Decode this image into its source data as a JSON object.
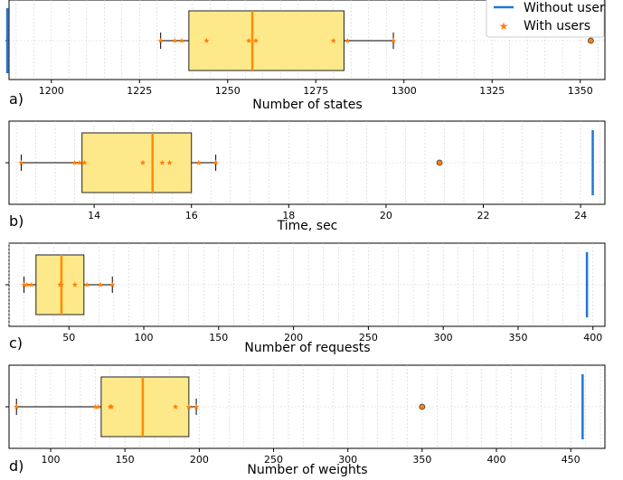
{
  "colors": {
    "baseline": "#1f77d4",
    "box_fill": "#fde98a",
    "box_edge": "#222222",
    "median": "#ff8c00",
    "points": "#ff7f0e",
    "grid": "#d0d0d0"
  },
  "legend": {
    "placement": "top-right",
    "without_user": "Without user",
    "with_users": "With users"
  },
  "chart_data": [
    {
      "type": "box",
      "panel_label": "a)",
      "xlabel": "Number of states",
      "xlim": [
        1188,
        1357
      ],
      "ticks": [
        1200,
        1225,
        1250,
        1275,
        1300,
        1325,
        1350
      ],
      "tick_labels": [
        "1200",
        "1225",
        "1250",
        "1275",
        "1300",
        "1325",
        "1350"
      ],
      "baseline_without_user": 1187.5,
      "box": {
        "whisker_low": 1231,
        "q1": 1239,
        "median": 1257,
        "q3": 1283,
        "whisker_high": 1297
      },
      "outliers": [
        1353
      ],
      "points_with_users": [
        1231,
        1235,
        1237,
        1244,
        1256,
        1258,
        1280,
        1284,
        1297,
        1353
      ],
      "grid": true
    },
    {
      "type": "box",
      "panel_label": "b)",
      "xlabel": "Time, sec",
      "xlim": [
        12.25,
        24.5
      ],
      "ticks": [
        14,
        16,
        18,
        20,
        22,
        24
      ],
      "tick_labels": [
        "14",
        "16",
        "18",
        "20",
        "22",
        "24"
      ],
      "baseline_without_user": 24.25,
      "box": {
        "whisker_low": 12.5,
        "q1": 13.75,
        "median": 15.2,
        "q3": 16.0,
        "whisker_high": 16.5
      },
      "outliers": [
        21.1
      ],
      "points_with_users": [
        12.5,
        13.6,
        13.7,
        13.8,
        15.0,
        15.4,
        15.55,
        16.15,
        16.5,
        21.1
      ],
      "grid": true
    },
    {
      "type": "box",
      "panel_label": "c)",
      "xlabel": "Number of requests",
      "xlim": [
        10,
        408
      ],
      "ticks": [
        50,
        100,
        150,
        200,
        250,
        300,
        350,
        400
      ],
      "tick_labels": [
        "50",
        "100",
        "150",
        "200",
        "250",
        "300",
        "350",
        "400"
      ],
      "baseline_without_user": 396,
      "box": {
        "whisker_low": 20,
        "q1": 28,
        "median": 45,
        "q3": 60,
        "whisker_high": 79
      },
      "outliers": [],
      "points_with_users": [
        20,
        22,
        25,
        44,
        45,
        54,
        62,
        71,
        79
      ],
      "grid": true
    },
    {
      "type": "box",
      "panel_label": "d)",
      "xlabel": "Number of weights",
      "xlim": [
        72,
        473
      ],
      "ticks": [
        100,
        150,
        200,
        250,
        300,
        350,
        400,
        450
      ],
      "tick_labels": [
        "100",
        "150",
        "200",
        "250",
        "300",
        "350",
        "400",
        "450"
      ],
      "baseline_without_user": 458,
      "box": {
        "whisker_low": 77,
        "q1": 134,
        "median": 162,
        "q3": 193,
        "whisker_high": 198
      },
      "outliers": [
        350
      ],
      "points_with_users": [
        77,
        130,
        132,
        140,
        141,
        184,
        193,
        198,
        350
      ],
      "grid": true
    }
  ]
}
